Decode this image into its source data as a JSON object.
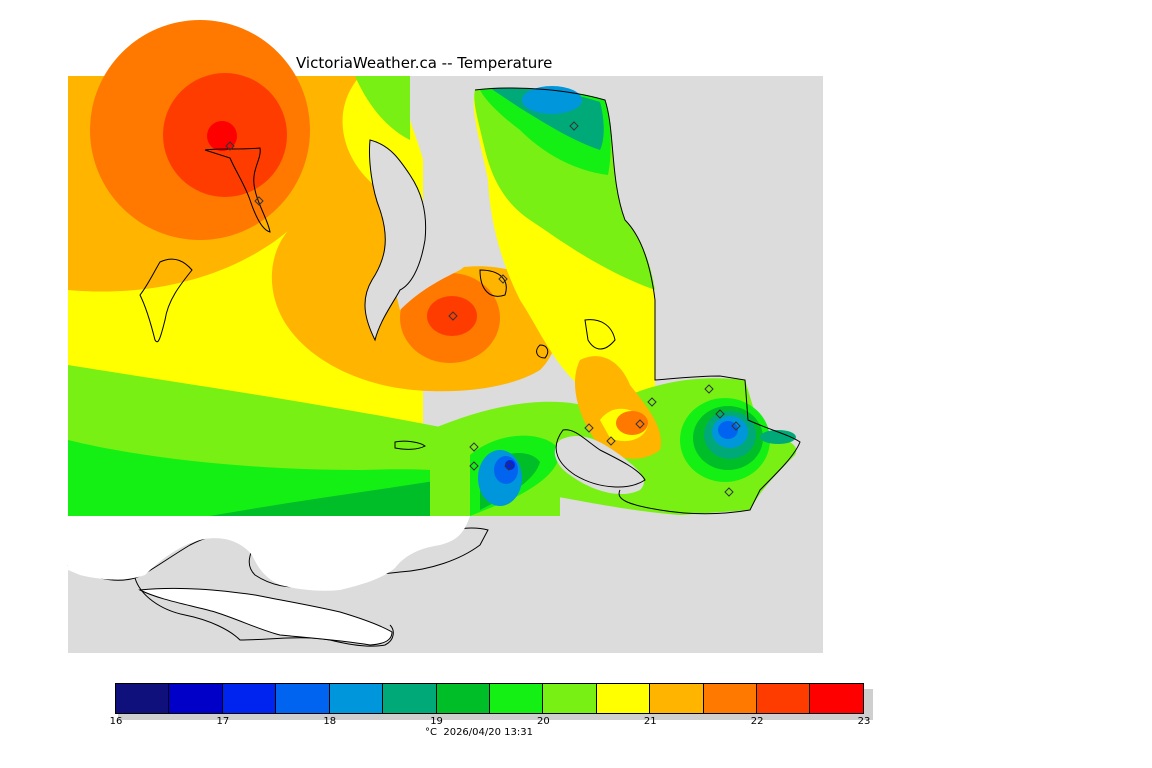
{
  "title": "VictoriaWeather.ca -- Temperature",
  "legend": {
    "ticks": [
      "16",
      "17",
      "18",
      "19",
      "20",
      "21",
      "22",
      "23"
    ],
    "colors": [
      "#10107c",
      "#0000c8",
      "#0024f0",
      "#0064f0",
      "#0096dc",
      "#00aa78",
      "#00be28",
      "#14f014",
      "#78f014",
      "#ffff00",
      "#ffb400",
      "#ff7800",
      "#ff3c00",
      "#ff0000"
    ],
    "caption": "°C  2026/04/20 13:31"
  },
  "map": {
    "land_color": "#dcdcdc",
    "us_land_color": "#ffffff"
  }
}
